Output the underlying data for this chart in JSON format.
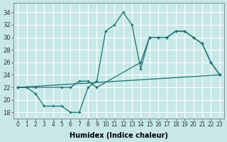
{
  "xlabel": "Humidex (Indice chaleur)",
  "background_color": "#c8e8e8",
  "grid_color": "#ffffff",
  "line_color": "#1a7070",
  "xlim": [
    -0.5,
    23.5
  ],
  "ylim": [
    17,
    35.5
  ],
  "yticks": [
    18,
    20,
    22,
    24,
    26,
    28,
    30,
    32,
    34
  ],
  "xticks": [
    0,
    1,
    2,
    3,
    4,
    5,
    6,
    7,
    8,
    9,
    10,
    11,
    12,
    13,
    14,
    15,
    16,
    17,
    18,
    19,
    20,
    21,
    22,
    23
  ],
  "series1_x": [
    0,
    1,
    2,
    3,
    4,
    5,
    6,
    7,
    8,
    9,
    10,
    11,
    12,
    13,
    14,
    15,
    16,
    17,
    18,
    19,
    20,
    21,
    22,
    23
  ],
  "series1_y": [
    22,
    22,
    21,
    19,
    19,
    19,
    18,
    18,
    22,
    23,
    31,
    32,
    34,
    32,
    25,
    30,
    30,
    30,
    31,
    31,
    30,
    29,
    26,
    24
  ],
  "series2_x": [
    0,
    2,
    5,
    6,
    7,
    8,
    9,
    14,
    15,
    16,
    17,
    18,
    19,
    20,
    21,
    22,
    23
  ],
  "series2_y": [
    22,
    22,
    22,
    22,
    23,
    23,
    22,
    26,
    30,
    30,
    30,
    31,
    31,
    30,
    29,
    26,
    24
  ],
  "series3_x": [
    0,
    23
  ],
  "series3_y": [
    22,
    24
  ]
}
